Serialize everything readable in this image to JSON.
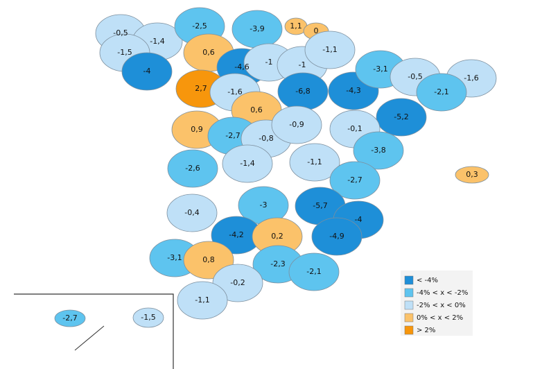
{
  "map": {
    "regions": [
      {
        "label": "-0,5",
        "color": "#bfe0f7"
      },
      {
        "label": "-1,4",
        "color": "#bfe0f7"
      },
      {
        "label": "-2,5",
        "color": "#5ec4ef"
      },
      {
        "label": "-3,9",
        "color": "#5ec4ef"
      },
      {
        "label": "1,1",
        "color": "#fbc26a"
      },
      {
        "label": "0",
        "color": "#fbc26a"
      },
      {
        "label": "-1,5",
        "color": "#bfe0f7"
      },
      {
        "label": "0,6",
        "color": "#fbc26a"
      },
      {
        "label": "-4,6",
        "color": "#1e8fd8"
      },
      {
        "label": "-1",
        "color": "#bfe0f7"
      },
      {
        "label": "-1",
        "color": "#bfe0f7"
      },
      {
        "label": "-1,1",
        "color": "#bfe0f7"
      },
      {
        "label": "-4",
        "color": "#1e8fd8"
      },
      {
        "label": "2,7",
        "color": "#f7960c"
      },
      {
        "label": "-1,6",
        "color": "#bfe0f7"
      },
      {
        "label": "-6,8",
        "color": "#1e8fd8"
      },
      {
        "label": "-4,3",
        "color": "#1e8fd8"
      },
      {
        "label": "-3,1",
        "color": "#5ec4ef"
      },
      {
        "label": "-0,5",
        "color": "#bfe0f7"
      },
      {
        "label": "-1,6",
        "color": "#bfe0f7"
      },
      {
        "label": "-2,1",
        "color": "#5ec4ef"
      },
      {
        "label": "-5,2",
        "color": "#1e8fd8"
      },
      {
        "label": "0,6",
        "color": "#fbc26a"
      },
      {
        "label": "0,9",
        "color": "#fbc26a"
      },
      {
        "label": "-2,7",
        "color": "#5ec4ef"
      },
      {
        "label": "-0,8",
        "color": "#bfe0f7"
      },
      {
        "label": "-0,9",
        "color": "#bfe0f7"
      },
      {
        "label": "-0,1",
        "color": "#bfe0f7"
      },
      {
        "label": "-3,8",
        "color": "#5ec4ef"
      },
      {
        "label": "-2,6",
        "color": "#5ec4ef"
      },
      {
        "label": "-1,4",
        "color": "#bfe0f7"
      },
      {
        "label": "-1,1",
        "color": "#bfe0f7"
      },
      {
        "label": "-2,7",
        "color": "#5ec4ef"
      },
      {
        "label": "0,3",
        "color": "#fbc26a"
      },
      {
        "label": "-0,4",
        "color": "#bfe0f7"
      },
      {
        "label": "-3",
        "color": "#5ec4ef"
      },
      {
        "label": "-5,7",
        "color": "#1e8fd8"
      },
      {
        "label": "-4",
        "color": "#1e8fd8"
      },
      {
        "label": "-4,2",
        "color": "#1e8fd8"
      },
      {
        "label": "0,2",
        "color": "#fbc26a"
      },
      {
        "label": "-4,9",
        "color": "#1e8fd8"
      },
      {
        "label": "-3,1",
        "color": "#5ec4ef"
      },
      {
        "label": "0,8",
        "color": "#fbc26a"
      },
      {
        "label": "-2,3",
        "color": "#5ec4ef"
      },
      {
        "label": "-2,1",
        "color": "#5ec4ef"
      },
      {
        "label": "-0,2",
        "color": "#bfe0f7"
      },
      {
        "label": "-1,1",
        "color": "#bfe0f7"
      },
      {
        "label": "-2,7",
        "color": "#5ec4ef"
      },
      {
        "label": "-1,5",
        "color": "#bfe0f7"
      }
    ],
    "legend": [
      {
        "label": "< -4%",
        "color": "#1e8fd8"
      },
      {
        "label": "-4% < x < -2%",
        "color": "#5ec4ef"
      },
      {
        "label": "-2% < x < 0%",
        "color": "#bfe0f7"
      },
      {
        "label": "0% < x < 2%",
        "color": "#fbc26a"
      },
      {
        "label": "> 2%",
        "color": "#f7960c"
      }
    ]
  }
}
